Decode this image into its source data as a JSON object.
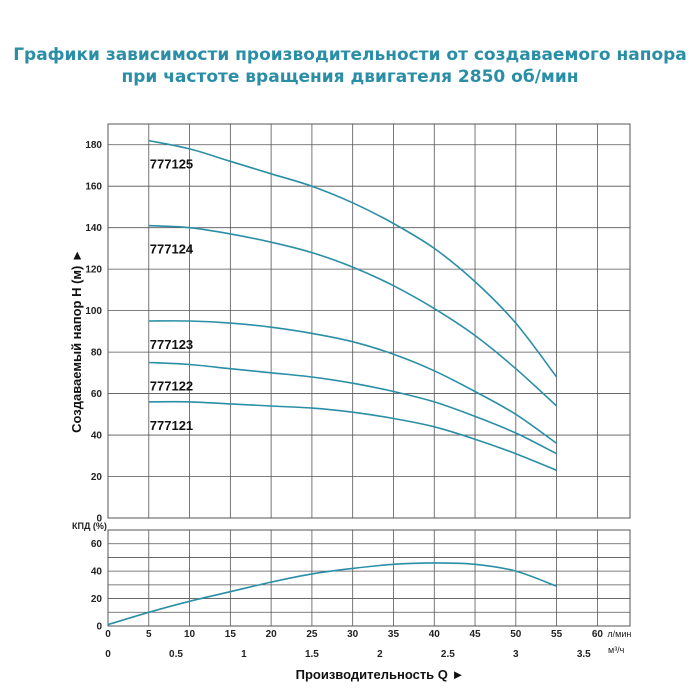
{
  "title_line1": "Графики зависимости производительности от создаваемого напора",
  "title_line2": "при частоте вращения двигателя 2850 об/мин",
  "colors": {
    "title": "#2a8fa6",
    "curve": "#2a8fa6",
    "grid": "#555555"
  },
  "chart_data": [
    {
      "type": "line",
      "ylabel": "Создаваемый напор H (м)",
      "ylim": [
        0,
        190
      ],
      "yticks": [
        0,
        20,
        40,
        60,
        80,
        100,
        120,
        140,
        160,
        180
      ],
      "x_lmin_ticks": [
        0,
        5,
        10,
        15,
        20,
        25,
        30,
        35,
        40,
        45,
        50,
        55,
        60
      ],
      "x_unit_lmin": "л/мин",
      "xlim_lmin": [
        0,
        64
      ],
      "grid": true,
      "series": [
        {
          "name": "777125",
          "x": [
            5,
            10,
            15,
            20,
            25,
            30,
            35,
            40,
            45,
            50,
            55
          ],
          "y": [
            182,
            178,
            172,
            166,
            160,
            152,
            142,
            130,
            114,
            94,
            68
          ]
        },
        {
          "name": "777124",
          "x": [
            5,
            10,
            15,
            20,
            25,
            30,
            35,
            40,
            45,
            50,
            55
          ],
          "y": [
            141,
            140,
            137,
            133,
            128,
            121,
            112,
            101,
            88,
            72,
            54
          ]
        },
        {
          "name": "777123",
          "x": [
            5,
            10,
            15,
            20,
            25,
            30,
            35,
            40,
            45,
            50,
            55
          ],
          "y": [
            95,
            95,
            94,
            92,
            89,
            85,
            79,
            71,
            61,
            50,
            36
          ]
        },
        {
          "name": "777122",
          "x": [
            5,
            10,
            15,
            20,
            25,
            30,
            35,
            40,
            45,
            50,
            55
          ],
          "y": [
            75,
            74,
            72,
            70,
            68,
            65,
            61,
            56,
            49,
            41,
            31
          ]
        },
        {
          "name": "777121",
          "x": [
            5,
            10,
            15,
            20,
            25,
            30,
            35,
            40,
            45,
            50,
            55
          ],
          "y": [
            56,
            56,
            55,
            54,
            53,
            51,
            48,
            44,
            38,
            31,
            23
          ]
        }
      ]
    },
    {
      "type": "line",
      "ylabel": "КПД (%)",
      "ylim": [
        0,
        70
      ],
      "yticks": [
        0,
        20,
        40,
        60
      ],
      "x_m3h_ticks": [
        "0",
        "0.5",
        "1",
        "1.5",
        "2",
        "2.5",
        "3",
        "3.5"
      ],
      "x_unit_m3h": "м³/ч",
      "xlabel": "Производительность Q",
      "grid": true,
      "series": [
        {
          "name": "",
          "x": [
            0,
            5,
            10,
            15,
            20,
            25,
            30,
            35,
            40,
            45,
            50,
            55
          ],
          "y": [
            1,
            10,
            18,
            25,
            32,
            38,
            42,
            45,
            46,
            45,
            40,
            29
          ]
        }
      ]
    }
  ]
}
